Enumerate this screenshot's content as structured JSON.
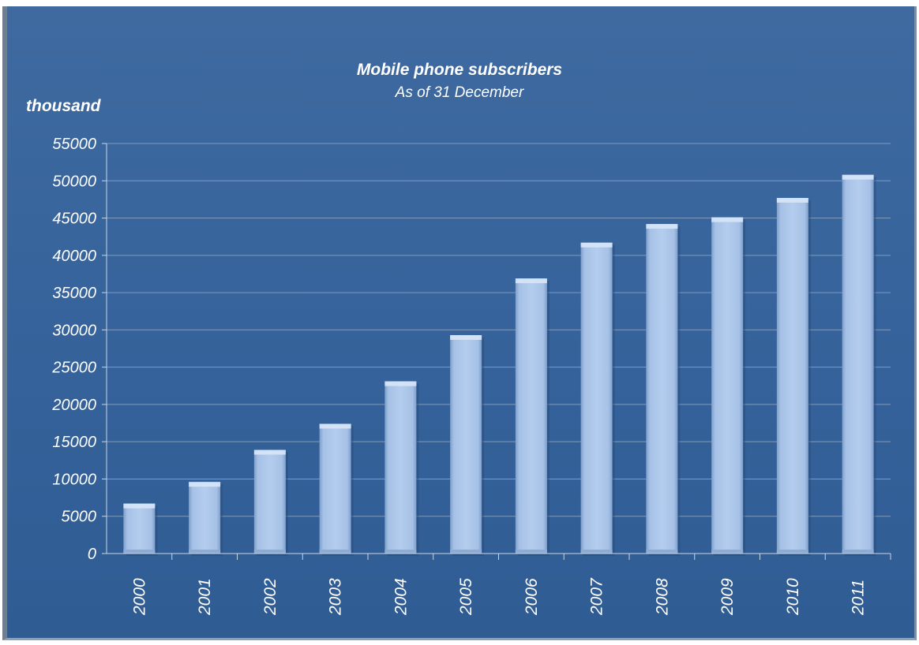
{
  "chart_data": {
    "type": "bar",
    "title": "Mobile phone subscribers",
    "subtitle": "As of 31 December",
    "ylabel": "thousand",
    "xlabel": "",
    "categories": [
      "2000",
      "2001",
      "2002",
      "2003",
      "2004",
      "2005",
      "2006",
      "2007",
      "2008",
      "2009",
      "2010",
      "2011"
    ],
    "values": [
      6700,
      9600,
      13900,
      17400,
      23100,
      29300,
      36900,
      41700,
      44200,
      45100,
      47700,
      50800
    ],
    "ylim": [
      0,
      55000
    ],
    "yticks": [
      "0",
      "5000",
      "10000",
      "15000",
      "20000",
      "25000",
      "30000",
      "35000",
      "40000",
      "45000",
      "50000",
      "55000"
    ],
    "grid": true,
    "legend": "none",
    "colors": {
      "bar": "#a9c4e8",
      "bar_edge": "#d7e6f8",
      "grid": "#7f9bbd",
      "text": "#ffffff"
    }
  }
}
